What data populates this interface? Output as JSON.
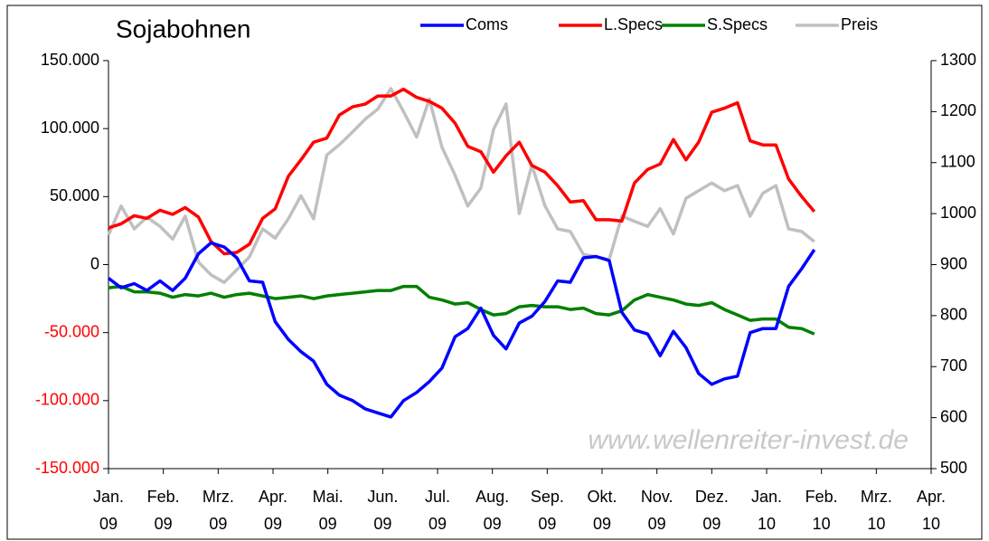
{
  "chart_data": {
    "type": "line",
    "title": "Sojabohnen",
    "watermark": "www.wellenreiter-invest.de",
    "x": [
      0,
      0.23,
      0.47,
      0.7,
      0.94,
      1.17,
      1.4,
      1.64,
      1.87,
      2.11,
      2.34,
      2.57,
      2.81,
      3.04,
      3.28,
      3.51,
      3.74,
      3.98,
      4.21,
      4.45,
      4.68,
      4.91,
      5.15,
      5.38,
      5.62,
      5.85,
      6.08,
      6.32,
      6.55,
      6.79,
      7.02,
      7.25,
      7.49,
      7.72,
      7.96,
      8.19,
      8.42,
      8.66,
      8.89,
      9.13,
      9.36,
      9.59,
      9.83,
      10.06,
      10.3,
      10.53,
      10.76,
      11.0,
      11.23,
      11.47,
      11.7,
      11.93,
      12.17,
      12.4,
      12.64,
      12.87
    ],
    "xlim": [
      0,
      15
    ],
    "xticks": [
      {
        "value": 0,
        "label": "Jan."
      },
      {
        "value": 1,
        "label": "Feb."
      },
      {
        "value": 2,
        "label": "Mrz."
      },
      {
        "value": 3,
        "label": "Apr."
      },
      {
        "value": 4,
        "label": "Mai."
      },
      {
        "value": 5,
        "label": "Jun."
      },
      {
        "value": 6,
        "label": "Jul."
      },
      {
        "value": 7,
        "label": "Aug."
      },
      {
        "value": 8,
        "label": "Sep."
      },
      {
        "value": 9,
        "label": "Okt."
      },
      {
        "value": 10,
        "label": "Nov."
      },
      {
        "value": 11,
        "label": "Dez."
      },
      {
        "value": 12,
        "label": "Jan."
      },
      {
        "value": 13,
        "label": "Feb."
      },
      {
        "value": 14,
        "label": "Mrz."
      },
      {
        "value": 15,
        "label": "Apr."
      }
    ],
    "xtick_years": [
      "09",
      "09",
      "09",
      "09",
      "09",
      "09",
      "09",
      "09",
      "09",
      "09",
      "09",
      "09",
      "10",
      "10",
      "10",
      "10"
    ],
    "ylim": [
      -150000,
      150000
    ],
    "yticks": [
      {
        "value": -150000,
        "label": "-150.000"
      },
      {
        "value": -100000,
        "label": "-100.000"
      },
      {
        "value": -50000,
        "label": "-50.000"
      },
      0,
      {
        "value": 50000,
        "label": "50.000"
      },
      {
        "value": 100000,
        "label": "100.000"
      },
      {
        "value": 150000,
        "label": "150.000"
      }
    ],
    "negative_tick_color": "#ff0000",
    "y2lim": [
      500,
      1300
    ],
    "y2ticks": [
      500,
      600,
      700,
      800,
      900,
      1000,
      1100,
      1200,
      1300
    ],
    "series": [
      {
        "name": "Coms",
        "color": "#0000ff",
        "values": [
          -10000,
          -17000,
          -14000,
          -19000,
          -12000,
          -19000,
          -10000,
          8000,
          16000,
          13000,
          5000,
          -12000,
          -13000,
          -42000,
          -55000,
          -64000,
          -71000,
          -88000,
          -96000,
          -100000,
          -106000,
          -109000,
          -112000,
          -100000,
          -94000,
          -86000,
          -76000,
          -53000,
          -47000,
          -32000,
          -52000,
          -62000,
          -43000,
          -38000,
          -27000,
          -12000,
          -13000,
          5000,
          6000,
          3000,
          -35000,
          -48000,
          -51000,
          -67000,
          -49000,
          -61000,
          -80000,
          -88000,
          -84000,
          -82000,
          -50000,
          -47000,
          -47000,
          -16000,
          -3000,
          11000
        ]
      },
      {
        "name": "L.Specs",
        "color": "#ff0000",
        "values": [
          27000,
          30000,
          36000,
          34000,
          40000,
          37000,
          42000,
          35000,
          17000,
          8000,
          9000,
          15000,
          34000,
          41000,
          65000,
          77000,
          90000,
          93000,
          110000,
          116000,
          118000,
          124000,
          124000,
          129000,
          123000,
          120000,
          115000,
          104000,
          87000,
          83000,
          68000,
          80000,
          90000,
          73000,
          68000,
          58000,
          46000,
          47000,
          33000,
          33000,
          32000,
          60000,
          70000,
          74000,
          92000,
          77000,
          90000,
          112000,
          115000,
          119000,
          91000,
          88000,
          88000,
          63000,
          50000,
          39000
        ]
      },
      {
        "name": "S.Specs",
        "color": "#008000",
        "values": [
          -17000,
          -16000,
          -20000,
          -20000,
          -21000,
          -24000,
          -22000,
          -23000,
          -21000,
          -24000,
          -22000,
          -21000,
          -23000,
          -25000,
          -24000,
          -23000,
          -25000,
          -23000,
          -22000,
          -21000,
          -20000,
          -19000,
          -19000,
          -16000,
          -16000,
          -24000,
          -26000,
          -29000,
          -28000,
          -33000,
          -37000,
          -36000,
          -31000,
          -30000,
          -31000,
          -31000,
          -33000,
          -32000,
          -36000,
          -37000,
          -34000,
          -26000,
          -22000,
          -24000,
          -26000,
          -29000,
          -30000,
          -28000,
          -33000,
          -37000,
          -41000,
          -40000,
          -40000,
          -46000,
          -47000,
          -51000
        ]
      },
      {
        "name": "Preis",
        "color": "#c0c0c0",
        "axis": "y2",
        "values": [
          958,
          1015,
          970,
          993,
          975,
          950,
          995,
          905,
          880,
          865,
          890,
          915,
          970,
          952,
          990,
          1035,
          990,
          1115,
          1135,
          1160,
          1185,
          1205,
          1245,
          1200,
          1150,
          1225,
          1130,
          1075,
          1015,
          1050,
          1165,
          1215,
          1000,
          1095,
          1015,
          970,
          965,
          920,
          915,
          910,
          995,
          985,
          975,
          1010,
          960,
          1030,
          1045,
          1060,
          1045,
          1055,
          995,
          1040,
          1055,
          970,
          965,
          945
        ]
      }
    ]
  }
}
